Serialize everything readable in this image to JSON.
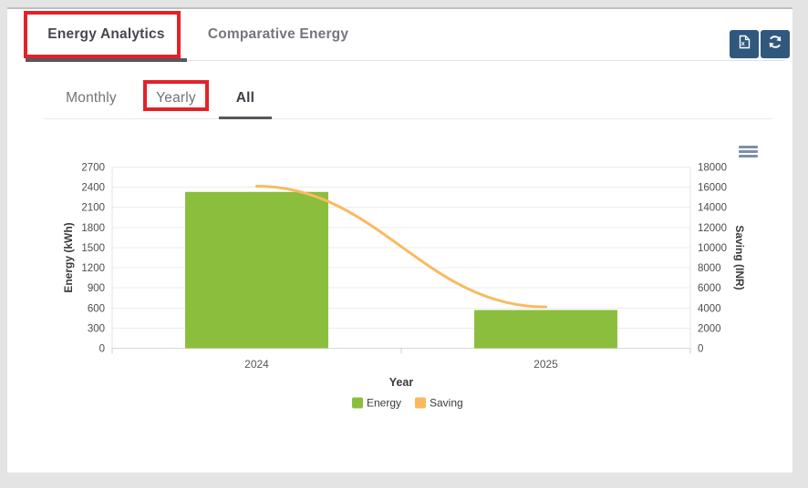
{
  "header": {
    "tabs": [
      {
        "label": "Energy Analytics",
        "active": true
      },
      {
        "label": "Comparative Energy",
        "active": false
      }
    ],
    "buttons": [
      {
        "name": "export-excel"
      },
      {
        "name": "refresh"
      }
    ]
  },
  "subtabs": [
    {
      "label": "Monthly",
      "active": false
    },
    {
      "label": "Yearly",
      "active": false
    },
    {
      "label": "All",
      "active": true
    }
  ],
  "annotations": {
    "color": "#E32228",
    "boxes": [
      "energy-analytics-tab",
      "yearly-subtab"
    ]
  },
  "chart_data": {
    "type": "bar",
    "categories": [
      "2024",
      "2025"
    ],
    "series": [
      {
        "name": "Energy",
        "type": "bar",
        "axis": "left",
        "color": "#8CBE3E",
        "values": [
          2330,
          570
        ]
      },
      {
        "name": "Saving",
        "type": "line",
        "axis": "right",
        "color": "#F9BA5F",
        "values": [
          16100,
          4100
        ]
      }
    ],
    "xlabel": "Year",
    "left_axis": {
      "title": "Energy (kWh)",
      "min": 0,
      "max": 2700,
      "step": 300
    },
    "right_axis": {
      "title": "Saving (INR)",
      "min": 0,
      "max": 18000,
      "step": 2000
    },
    "legend": [
      "Energy",
      "Saving"
    ],
    "legend_position": "bottom",
    "grid": true
  },
  "colors": {
    "navy_button": "#30587C",
    "bar_green": "#8CBE3E",
    "line_orange": "#F9BA5F",
    "annotation_red": "#E32228"
  }
}
